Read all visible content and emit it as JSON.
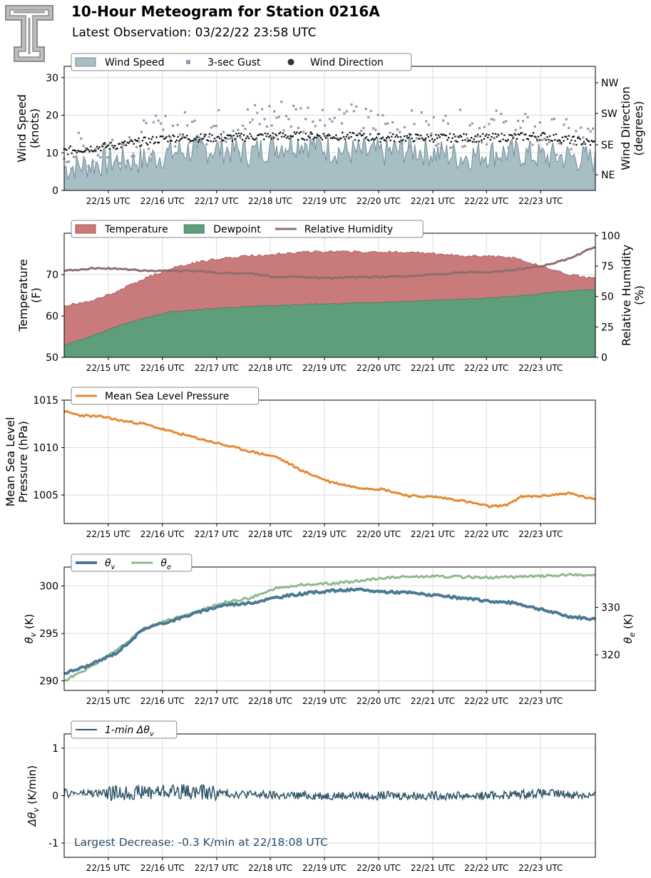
{
  "header": {
    "title": "10-Hour Meteogram for Station 0216A",
    "subtitle": "Latest Observation: 03/22/22 23:58 UTC"
  },
  "colors": {
    "wind_fill": "#a7bec4",
    "wind_line": "#6f8f97",
    "gust": "#9a98b2",
    "direction": "#1a1a1a",
    "temperature": "#c97a7a",
    "dewpoint": "#5f9e7a",
    "rh": "#8e6f6f",
    "pressure": "#e48a31",
    "theta_v": "#4a7a94",
    "theta_e": "#90b98f",
    "dtheta": "#2f5568",
    "annotation": "#284f6e"
  },
  "chart_data": [
    {
      "id": "wind",
      "type": "area",
      "xticks": [
        "22/15 UTC",
        "22/16 UTC",
        "22/17 UTC",
        "22/18 UTC",
        "22/19 UTC",
        "22/20 UTC",
        "22/21 UTC",
        "22/22 UTC",
        "22/23 UTC"
      ],
      "ylabel": "Wind Speed\n(knots)",
      "ylim": [
        0,
        33
      ],
      "yticks": [
        0,
        10,
        20,
        30
      ],
      "y2label": "Wind Direction\n(degrees)",
      "y2ticks": [
        "NE",
        "SE",
        "SW",
        "NW"
      ],
      "legend": [
        "Wind Speed",
        "3-sec Gust",
        "Wind Direction"
      ],
      "legend_loc": "top-left",
      "grid": true,
      "series": [
        {
          "name": "Wind Speed",
          "x": [
            0,
            0.5,
            1,
            1.5,
            2,
            2.5,
            3,
            3.5,
            4,
            4.5,
            5,
            5.5,
            6,
            6.5,
            7,
            7.5,
            8,
            8.5,
            9,
            9.5,
            10
          ],
          "values": [
            6,
            7,
            8,
            8,
            10,
            11,
            11,
            10,
            12,
            13,
            11,
            10,
            10,
            11,
            10,
            9,
            10,
            10,
            9,
            9,
            8
          ]
        },
        {
          "name": "3-sec Gust",
          "x": [
            0,
            1,
            2,
            3,
            4,
            5,
            6,
            7,
            8,
            9,
            10
          ],
          "values": [
            10,
            12,
            16,
            17,
            20,
            19,
            17,
            16,
            17,
            15,
            13
          ]
        },
        {
          "name": "Wind Direction",
          "x": [
            0,
            1,
            2,
            3,
            4,
            5,
            6,
            7,
            8,
            9,
            10
          ],
          "values": [
            10.5,
            12,
            14,
            14,
            14.5,
            14.5,
            14,
            14,
            14,
            14.5,
            12.5
          ]
        }
      ]
    },
    {
      "id": "temp",
      "type": "area",
      "xticks": [
        "22/15 UTC",
        "22/16 UTC",
        "22/17 UTC",
        "22/18 UTC",
        "22/19 UTC",
        "22/20 UTC",
        "22/21 UTC",
        "22/22 UTC",
        "22/23 UTC"
      ],
      "ylabel": "Temperature\n(F)",
      "ylim": [
        50,
        80
      ],
      "yticks": [
        50,
        60,
        70
      ],
      "y2label": "Relative Humidity\n(%)",
      "y2lim": [
        0,
        102
      ],
      "y2ticks": [
        0,
        25,
        50,
        75,
        100
      ],
      "legend": [
        "Temperature",
        "Dewpoint",
        "Relative Humidity"
      ],
      "legend_loc": "top-left",
      "grid": true,
      "series": [
        {
          "name": "Temperature",
          "x": [
            0,
            0.5,
            1,
            1.5,
            2,
            2.5,
            3,
            3.5,
            4,
            4.5,
            5,
            5.5,
            6,
            6.5,
            7,
            7.5,
            8,
            8.5,
            9,
            9.5,
            10
          ],
          "values": [
            62.5,
            63.5,
            66,
            69,
            71.5,
            73,
            74,
            74.5,
            75,
            75.5,
            75.5,
            75.5,
            75.5,
            75.5,
            75,
            74.5,
            74.5,
            74,
            72,
            70,
            69
          ]
        },
        {
          "name": "Dewpoint",
          "x": [
            0,
            0.5,
            1,
            1.5,
            2,
            2.5,
            3,
            3.5,
            4,
            4.5,
            5,
            5.5,
            6,
            6.5,
            7,
            7.5,
            8,
            8.5,
            9,
            9.5,
            10
          ],
          "values": [
            53,
            55,
            57.5,
            59.5,
            61,
            61.5,
            62,
            62.3,
            62.5,
            62.8,
            63,
            63.1,
            63.3,
            63.5,
            63.8,
            64,
            64.3,
            64.8,
            65.5,
            66,
            66.5
          ]
        },
        {
          "name": "Relative Humidity",
          "x": [
            0,
            0.5,
            1,
            1.5,
            2,
            2.5,
            3,
            3.5,
            4,
            4.5,
            5,
            5.5,
            6,
            6.5,
            7,
            7.5,
            8,
            8.5,
            9,
            9.5,
            10
          ],
          "values": [
            71,
            73,
            73,
            71,
            71,
            71,
            69,
            69,
            66,
            66,
            65,
            66,
            66,
            67,
            68,
            70,
            70,
            72,
            75,
            81,
            91
          ]
        }
      ]
    },
    {
      "id": "pressure",
      "type": "line",
      "xticks": [
        "22/15 UTC",
        "22/16 UTC",
        "22/17 UTC",
        "22/18 UTC",
        "22/19 UTC",
        "22/20 UTC",
        "22/21 UTC",
        "22/22 UTC",
        "22/23 UTC"
      ],
      "ylabel": "Mean Sea Level\nPressure (hPa)",
      "ylim": [
        1002,
        1015
      ],
      "yticks": [
        1005,
        1010,
        1015
      ],
      "legend": [
        "Mean Sea Level Pressure"
      ],
      "legend_loc": "top-left",
      "grid": true,
      "series": [
        {
          "name": "Mean Sea Level Pressure",
          "x": [
            0,
            0.3,
            0.8,
            1,
            1.5,
            2,
            2.5,
            3,
            3.5,
            4,
            4.5,
            5,
            5.5,
            6,
            6.5,
            7,
            7.5,
            8,
            8.3,
            8.6,
            9,
            9.5,
            10
          ],
          "values": [
            1013.8,
            1013.4,
            1013.2,
            1012.9,
            1012.5,
            1011.7,
            1011.0,
            1010.3,
            1009.6,
            1009.0,
            1007.5,
            1006.4,
            1005.8,
            1005.6,
            1004.9,
            1004.8,
            1004.4,
            1003.8,
            1003.9,
            1004.8,
            1004.9,
            1005.2,
            1004.5
          ]
        }
      ]
    },
    {
      "id": "theta",
      "type": "line",
      "xticks": [
        "22/15 UTC",
        "22/16 UTC",
        "22/17 UTC",
        "22/18 UTC",
        "22/19 UTC",
        "22/20 UTC",
        "22/21 UTC",
        "22/22 UTC",
        "22/23 UTC"
      ],
      "ylabel": "θv (K)",
      "ylim": [
        289,
        302
      ],
      "yticks": [
        290,
        295,
        300
      ],
      "y2label": "θe (K)",
      "y2lim": [
        312.5,
        338.5
      ],
      "y2ticks": [
        320,
        330
      ],
      "legend": [
        "θv",
        "θe"
      ],
      "legend_loc": "top-left",
      "grid": true,
      "series": [
        {
          "name": "θv",
          "x": [
            0,
            0.5,
            1,
            1.5,
            2,
            2.5,
            3,
            3.5,
            4,
            4.5,
            5,
            5.5,
            6,
            6.5,
            7,
            7.5,
            8,
            8.5,
            9,
            9.5,
            10
          ],
          "values": [
            290.8,
            291.7,
            293.0,
            295.5,
            296.3,
            297.2,
            298.0,
            298.2,
            298.8,
            299.2,
            299.5,
            299.6,
            299.4,
            299.3,
            299.0,
            298.7,
            298.4,
            298.2,
            297.5,
            296.8,
            296.5
          ]
        },
        {
          "name": "θe",
          "x": [
            0,
            0.5,
            1,
            1.5,
            2,
            2.5,
            3,
            3.5,
            4,
            4.5,
            5,
            5.5,
            6,
            6.5,
            7,
            7.5,
            8,
            8.5,
            9,
            9.5,
            10
          ],
          "values": [
            314.5,
            317.5,
            321.0,
            325.5,
            327.5,
            329.0,
            331.0,
            332.0,
            334.0,
            334.8,
            335.0,
            335.5,
            336.2,
            336.5,
            336.5,
            336.4,
            336.3,
            336.4,
            336.6,
            336.8,
            336.8
          ]
        }
      ]
    },
    {
      "id": "dtheta",
      "type": "line",
      "xticks": [
        "22/15 UTC",
        "22/16 UTC",
        "22/17 UTC",
        "22/18 UTC",
        "22/19 UTC",
        "22/20 UTC",
        "22/21 UTC",
        "22/22 UTC",
        "22/23 UTC"
      ],
      "ylabel": "Δθv (K/min)",
      "ylim": [
        -1.3,
        1.3
      ],
      "yticks": [
        -1,
        0,
        1
      ],
      "legend": [
        "1-min Δθv"
      ],
      "legend_loc": "top-left",
      "grid": true,
      "annotation": "Largest Decrease: -0.3 K/min at 22/18:08 UTC",
      "series": [
        {
          "name": "1-min Δθv",
          "x": [
            0,
            1,
            2,
            3,
            4,
            5,
            6,
            7,
            8,
            9,
            10
          ],
          "values": [
            0.05,
            0.05,
            0.1,
            0.05,
            0.0,
            0.0,
            0.0,
            0.0,
            0.0,
            0.05,
            0.0
          ]
        }
      ]
    }
  ]
}
